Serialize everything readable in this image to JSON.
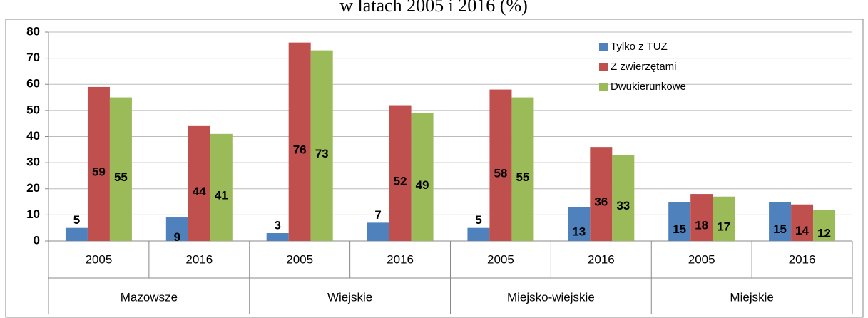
{
  "chart_data": {
    "type": "bar",
    "title": "w latach 2005 i 2016 (%)",
    "categories": [
      "2005",
      "2016",
      "2005",
      "2016",
      "2005",
      "2016",
      "2005",
      "2016"
    ],
    "groups": [
      "Mazowsze",
      "Wiejskie",
      "Miejsko-wiejskie",
      "Miejskie"
    ],
    "series": [
      {
        "name": "Tylko z TUZ",
        "color": "#4f81bd",
        "values": [
          5,
          9,
          3,
          7,
          5,
          13,
          15,
          15
        ]
      },
      {
        "name": "Z zwierzętami",
        "color": "#c0504d",
        "values": [
          59,
          44,
          76,
          52,
          58,
          36,
          18,
          14
        ]
      },
      {
        "name": "Dwukierunkowe",
        "color": "#9bbb59",
        "values": [
          55,
          41,
          73,
          49,
          55,
          33,
          17,
          12
        ]
      }
    ],
    "ylim": [
      0,
      80
    ],
    "yticks": [
      0,
      10,
      20,
      30,
      40,
      50,
      60,
      70,
      80
    ],
    "grid": true,
    "legend": "top-right"
  }
}
